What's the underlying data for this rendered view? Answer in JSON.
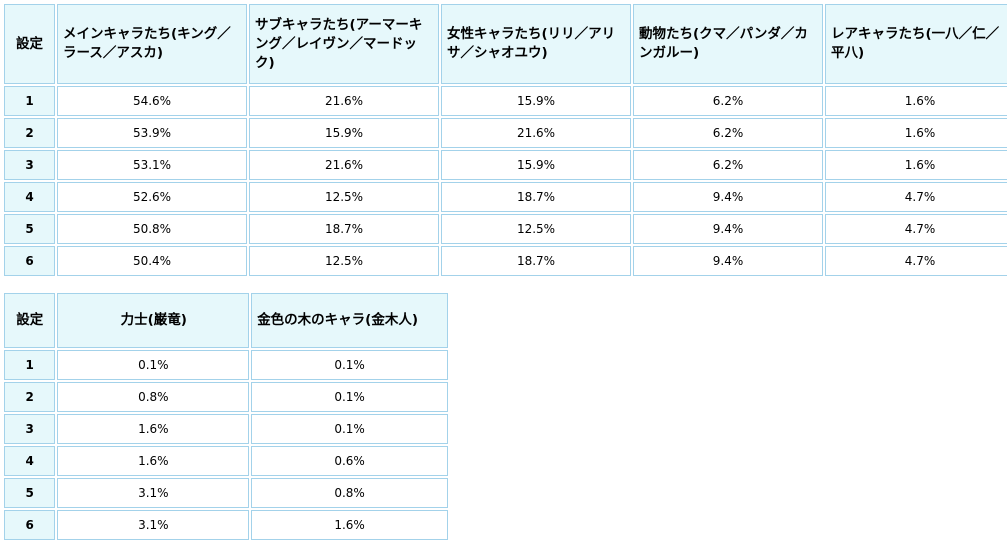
{
  "table1": {
    "headers": [
      "設定",
      "メインキャラたち(キング／ラース／アスカ)",
      "サブキャラたち(アーマーキング／レイヴン／マードック)",
      "女性キャラたち(リリ／アリサ／シャオユウ)",
      "動物たち(クマ／パンダ／カンガルー)",
      "レアキャラたち(一八／仁／平八)"
    ],
    "rows": [
      [
        "1",
        "54.6%",
        "21.6%",
        "15.9%",
        "6.2%",
        "1.6%"
      ],
      [
        "2",
        "53.9%",
        "15.9%",
        "21.6%",
        "6.2%",
        "1.6%"
      ],
      [
        "3",
        "53.1%",
        "21.6%",
        "15.9%",
        "6.2%",
        "1.6%"
      ],
      [
        "4",
        "52.6%",
        "12.5%",
        "18.7%",
        "9.4%",
        "4.7%"
      ],
      [
        "5",
        "50.8%",
        "18.7%",
        "12.5%",
        "9.4%",
        "4.7%"
      ],
      [
        "6",
        "50.4%",
        "12.5%",
        "18.7%",
        "9.4%",
        "4.7%"
      ]
    ]
  },
  "table2": {
    "headers": [
      "設定",
      "力士(巌竜)",
      "金色の木のキャラ(金木人)"
    ],
    "rows": [
      [
        "1",
        "0.1%",
        "0.1%"
      ],
      [
        "2",
        "0.8%",
        "0.1%"
      ],
      [
        "3",
        "1.6%",
        "0.1%"
      ],
      [
        "4",
        "1.6%",
        "0.6%"
      ],
      [
        "5",
        "3.1%",
        "0.8%"
      ],
      [
        "6",
        "3.1%",
        "1.6%"
      ]
    ]
  }
}
